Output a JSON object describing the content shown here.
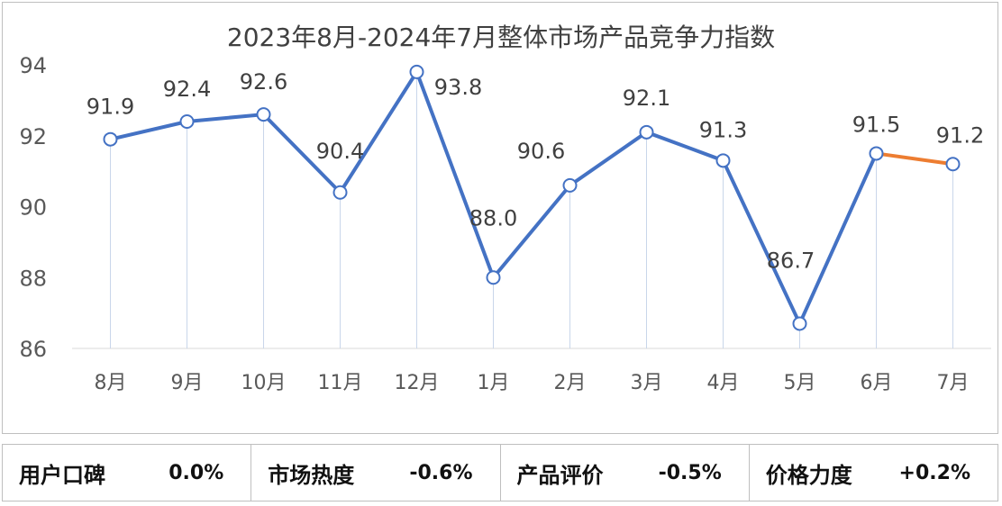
{
  "chart_data": {
    "type": "line",
    "title": "2023年8月-2024年7月整体市场产品竞争力指数",
    "categories": [
      "8月",
      "9月",
      "10月",
      "11月",
      "12月",
      "1月",
      "2月",
      "3月",
      "4月",
      "5月",
      "6月",
      "7月"
    ],
    "series": [
      {
        "values": [
          91.9,
          92.4,
          92.6,
          90.4,
          93.8,
          88.0,
          90.6,
          92.1,
          91.3,
          86.7,
          91.5,
          91.2
        ]
      }
    ],
    "data_labels": [
      "91.9",
      "92.4",
      "92.6",
      "90.4",
      "93.8",
      "88.0",
      "90.6",
      "92.1",
      "91.3",
      "86.7",
      "91.5",
      "91.2"
    ],
    "ylim": [
      86,
      94
    ],
    "yticks": [
      86,
      88,
      90,
      92,
      94
    ],
    "colors": {
      "line": "#4472c4",
      "last_segment": "#ed7d31",
      "droplines": "#c9d6ea"
    },
    "grid": false,
    "xlabel": "",
    "ylabel": ""
  },
  "metrics": [
    {
      "label": "用户口碑",
      "value": "0.0%"
    },
    {
      "label": "市场热度",
      "value": "-0.6%"
    },
    {
      "label": "产品评价",
      "value": "-0.5%"
    },
    {
      "label": "价格力度",
      "value": "+0.2%"
    }
  ]
}
